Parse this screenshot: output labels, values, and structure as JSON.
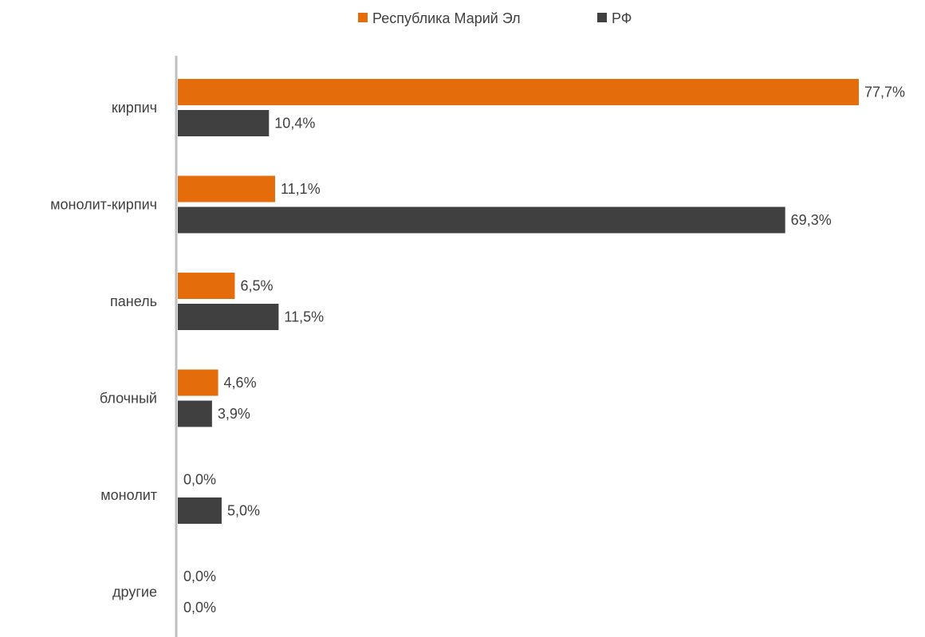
{
  "chart_data": {
    "type": "bar",
    "orientation": "horizontal",
    "categories": [
      "кирпич",
      "монолит-кирпич",
      "панель",
      "блочный",
      "монолит",
      "другие"
    ],
    "series": [
      {
        "name": "Республика Марий Эл",
        "color": "#E46C0A",
        "values": [
          77.7,
          11.1,
          6.5,
          4.6,
          0.0,
          0.0
        ],
        "labels": [
          "77,7%",
          "11,1%",
          "6,5%",
          "4,6%",
          "0,0%",
          "0,0%"
        ]
      },
      {
        "name": "РФ",
        "color": "#404040",
        "values": [
          10.4,
          69.3,
          11.5,
          3.9,
          5.0,
          0.0
        ],
        "labels": [
          "10,4%",
          "69,3%",
          "11,5%",
          "3,9%",
          "5,0%",
          "0,0%"
        ]
      }
    ],
    "xlim": [
      0,
      77.7
    ],
    "grid": false,
    "legend_position": "top-center",
    "title": "",
    "xlabel": "",
    "ylabel": ""
  }
}
